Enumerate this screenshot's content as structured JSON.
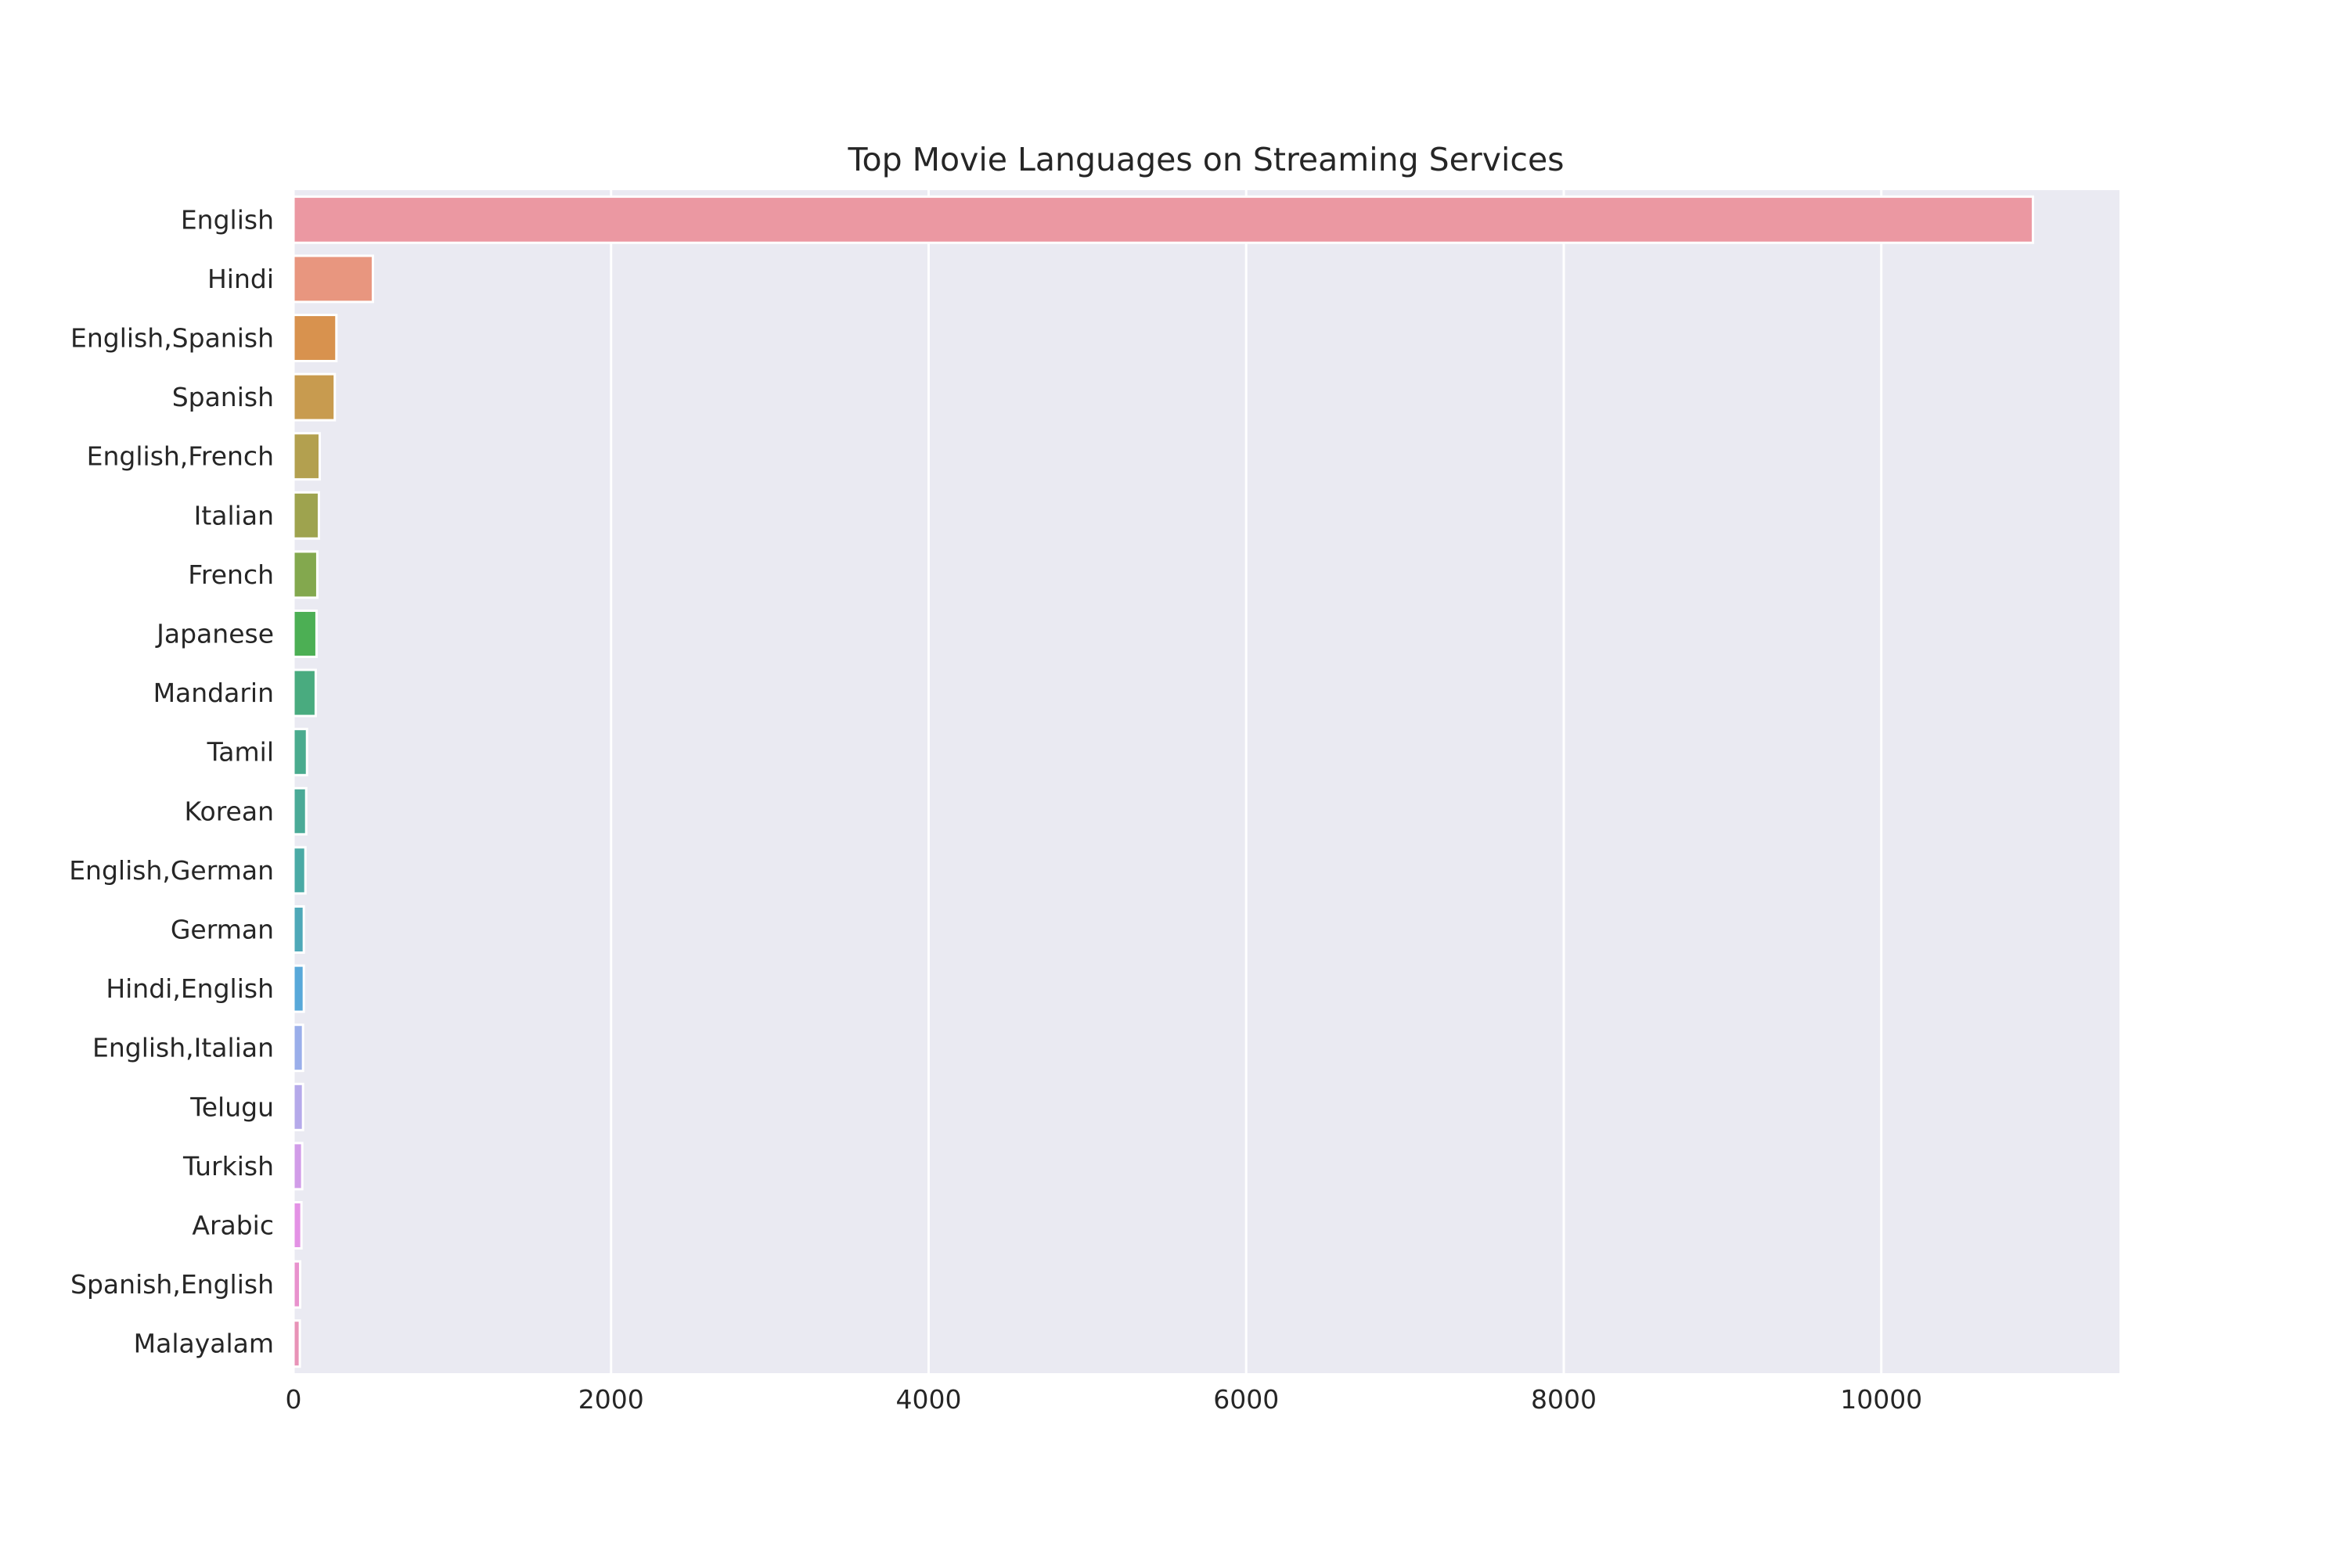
{
  "chart_data": {
    "type": "bar",
    "orientation": "horizontal",
    "title": "Top Movie Languages on Streaming Services",
    "xlabel": "",
    "ylabel": "",
    "xlim": [
      0,
      11500
    ],
    "x_ticks": [
      0,
      2000,
      4000,
      6000,
      8000,
      10000
    ],
    "grid": true,
    "categories": [
      "English",
      "Hindi",
      "English,Spanish",
      "Spanish",
      "English,French",
      "Italian",
      "French",
      "Japanese",
      "Mandarin",
      "Tamil",
      "Korean",
      "English,German",
      "German",
      "Hindi,English",
      "English,Italian",
      "Telugu",
      "Turkish",
      "Arabic",
      "Spanish,English",
      "Malayalam"
    ],
    "values": [
      10955,
      500,
      270,
      260,
      165,
      160,
      150,
      145,
      140,
      85,
      80,
      75,
      65,
      65,
      60,
      60,
      55,
      50,
      42,
      40
    ],
    "colors": [
      "#eb98a2",
      "#e8967f",
      "#d8924e",
      "#c89b4f",
      "#b3a04f",
      "#9ea34e",
      "#83a84e",
      "#4caf54",
      "#49ab7f",
      "#4aab8e",
      "#4aaa97",
      "#4aaaa5",
      "#4ea8b8",
      "#58a8d9",
      "#9aaeea",
      "#b5a9ea",
      "#d19ce8",
      "#e392e5",
      "#e892cd",
      "#e893b7"
    ]
  }
}
